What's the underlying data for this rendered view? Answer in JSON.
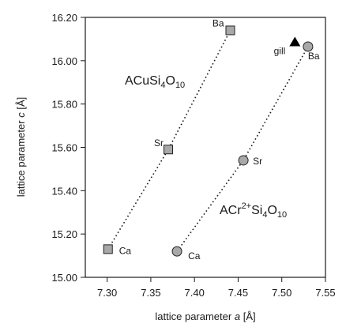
{
  "chart_data": {
    "type": "scatter",
    "xlabel_prefix": "lattice parameter",
    "xlabel_var": "a",
    "xlabel_unit": "[Å]",
    "ylabel_prefix": "lattice parameter",
    "ylabel_var": "c",
    "ylabel_unit": "[Å]",
    "xlim": [
      7.275,
      7.55
    ],
    "ylim": [
      15.0,
      16.2
    ],
    "x_ticks": [
      "7.30",
      "7.35",
      "7.40",
      "7.45",
      "7.50",
      "7.55"
    ],
    "y_ticks": [
      "15.00",
      "15.20",
      "15.40",
      "15.60",
      "15.80",
      "16.00",
      "16.20"
    ],
    "series": [
      {
        "formula": {
          "base": "ACuSi",
          "sub1": "4",
          "mid": "O",
          "sub2": "10",
          "sup": ""
        },
        "marker": "square",
        "points": [
          {
            "label": "Ca",
            "x": 7.301,
            "y": 15.13
          },
          {
            "label": "Sr",
            "x": 7.37,
            "y": 15.59
          },
          {
            "label": "Ba",
            "x": 7.441,
            "y": 16.14
          }
        ]
      },
      {
        "formula": {
          "base": "ACr",
          "sup": "2+",
          "mid2": "Si",
          "sub1": "4",
          "mid": "O",
          "sub2": "10"
        },
        "marker": "circle",
        "points": [
          {
            "label": "Ca",
            "x": 7.38,
            "y": 15.12
          },
          {
            "label": "Sr",
            "x": 7.456,
            "y": 15.54
          },
          {
            "label": "Ba",
            "x": 7.53,
            "y": 16.065
          }
        ]
      }
    ],
    "extra_point": {
      "label": "gill",
      "marker": "triangle",
      "x": 7.515,
      "y": 16.085
    },
    "colors": {
      "marker_fill": "#a8a8a8",
      "marker_stroke": "#222222",
      "triangle_fill": "#000000"
    }
  }
}
